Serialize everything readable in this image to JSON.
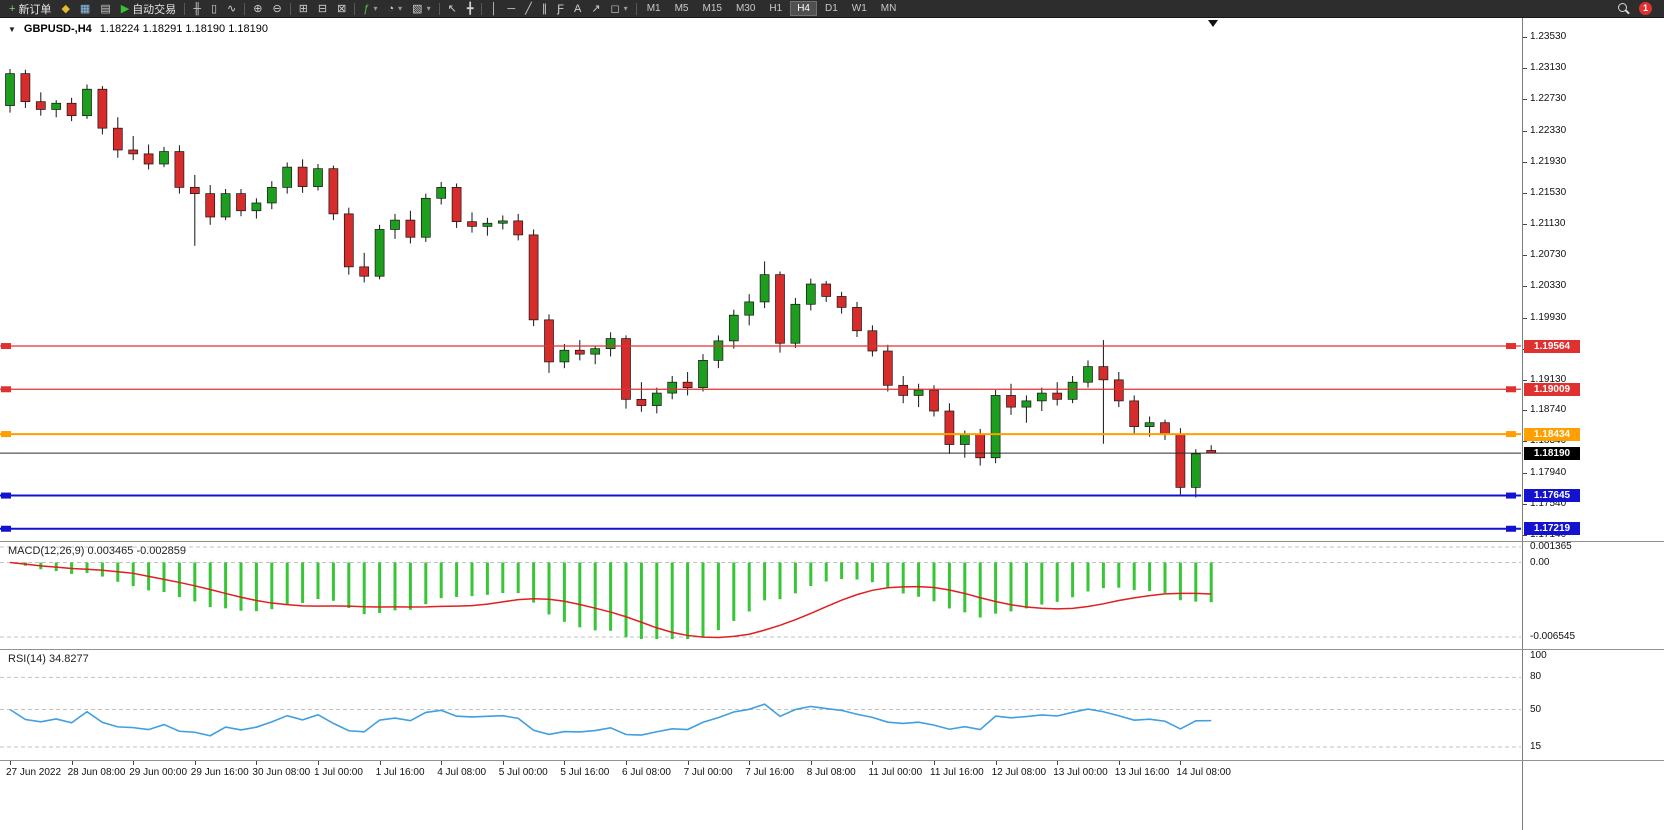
{
  "toolbar": {
    "groups": [
      [
        {
          "name": "new-order",
          "glyph": "+",
          "glyph_color": "#7fd47f",
          "label": "新订单"
        },
        {
          "name": "promo",
          "glyph": "◆",
          "glyph_color": "#e6b92e"
        },
        {
          "name": "chart-window",
          "glyph": "▦",
          "glyph_color": "#8fc1e8"
        },
        {
          "name": "profiles",
          "glyph": "▤",
          "glyph_color": "#c8c8c8"
        },
        {
          "name": "autotrade",
          "glyph": "▶",
          "glyph_color": "#35c435",
          "label": "自动交易"
        }
      ],
      [
        {
          "name": "bar-chart",
          "glyph": "╫"
        },
        {
          "name": "candlestick-chart",
          "glyph": "▯"
        },
        {
          "name": "line-chart",
          "glyph": "∿"
        }
      ],
      [
        {
          "name": "zoom-in",
          "glyph": "⊕"
        },
        {
          "name": "zoom-out",
          "glyph": "⊖"
        }
      ],
      [
        {
          "name": "tile-windows",
          "glyph": "⊞"
        },
        {
          "name": "cascade-windows",
          "glyph": "⊟"
        },
        {
          "name": "arrange-windows",
          "glyph": "⊠"
        }
      ],
      [
        {
          "name": "indicators",
          "glyph": "ƒ",
          "glyph_color": "#4fc14f",
          "caret": true
        },
        {
          "name": "periods",
          "glyph": "◔",
          "caret": true
        },
        {
          "name": "templates",
          "glyph": "▧",
          "caret": true
        }
      ],
      [
        {
          "name": "cursor",
          "glyph": "↖"
        },
        {
          "name": "crosshair",
          "glyph": "╋"
        }
      ],
      [
        {
          "name": "vertical-line",
          "glyph": "│"
        },
        {
          "name": "horizontal-line",
          "glyph": "─"
        },
        {
          "name": "trendline",
          "glyph": "╱"
        },
        {
          "name": "channel",
          "glyph": "∥"
        },
        {
          "name": "fibonacci",
          "glyph": "Ƒ"
        },
        {
          "name": "text-label",
          "glyph": "A"
        },
        {
          "name": "arrow-tool",
          "glyph": "↗"
        },
        {
          "name": "shapes",
          "glyph": "◻",
          "caret": true
        }
      ]
    ],
    "timeframes": [
      "M1",
      "M5",
      "M15",
      "M30",
      "H1",
      "H4",
      "D1",
      "W1",
      "MN"
    ],
    "active_timeframe": "H4",
    "notification_count": "1"
  },
  "chart": {
    "header": "GBPUSD-,H4",
    "ohlc_display": "1.18224 1.18291 1.18190 1.18190",
    "price_ticks": [
      "1.23530",
      "1.23130",
      "1.22730",
      "1.22330",
      "1.21930",
      "1.21530",
      "1.21130",
      "1.20730",
      "1.20330",
      "1.19930",
      "1.19530",
      "1.19130",
      "1.18740",
      "1.18340",
      "1.17940",
      "1.17540",
      "1.17140"
    ],
    "hlines": [
      {
        "price": 1.19564,
        "label": "1.19564",
        "color": "#e03131",
        "width": 1.2,
        "markers": true
      },
      {
        "price": 1.19009,
        "label": "1.19009",
        "color": "#e03131",
        "width": 1.2,
        "markers": true
      },
      {
        "price": 1.18434,
        "label": "1.18434",
        "color": "#ff9f00",
        "width": 2,
        "markers": true
      },
      {
        "price": 1.1819,
        "label": "1.18190",
        "color": "#2b2b2b",
        "width": 1,
        "tag_bg": "#000000",
        "markers": false
      },
      {
        "price": 1.17645,
        "label": "1.17645",
        "color": "#1212d0",
        "width": 2,
        "markers": true
      },
      {
        "price": 1.17219,
        "label": "1.17219",
        "color": "#1212d0",
        "width": 2,
        "markers": true
      }
    ],
    "up_color": "#1e9e1e",
    "down_color": "#d62c2c",
    "wick_color": "#141414"
  },
  "macd": {
    "label": "MACD(12,26,9)",
    "value_main": "0.003465",
    "value_signal": "-0.002859",
    "axis_labels": [
      "0.001365",
      "0.00",
      "-0.006545"
    ],
    "axis_values": [
      0.001365,
      0,
      -0.006545
    ],
    "histogram_color": "#36c636",
    "signal_color": "#e01f1f"
  },
  "rsi": {
    "label": "RSI(14)",
    "value": "34.8277",
    "axis_labels": [
      "100",
      "80",
      "50",
      "15"
    ],
    "axis_values": [
      100,
      80,
      50,
      15
    ],
    "levels": [
      80,
      50,
      15
    ],
    "line_color": "#3f9fdf"
  },
  "time_axis": {
    "labels": [
      "27 Jun 2022",
      "28 Jun 08:00",
      "29 Jun 00:00",
      "29 Jun 16:00",
      "30 Jun 08:00",
      "1 Jul 00:00",
      "1 Jul 16:00",
      "4 Jul 08:00",
      "5 Jul 00:00",
      "5 Jul 16:00",
      "6 Jul 08:00",
      "7 Jul 00:00",
      "7 Jul 16:00",
      "8 Jul 08:00",
      "11 Jul 00:00",
      "11 Jul 16:00",
      "12 Jul 08:00",
      "13 Jul 00:00",
      "13 Jul 16:00",
      "14 Jul 08:00"
    ],
    "bar_indices": [
      0,
      4,
      8,
      12,
      16,
      20,
      24,
      28,
      32,
      36,
      40,
      44,
      48,
      52,
      56,
      60,
      64,
      68,
      72,
      76
    ]
  },
  "chart_data": {
    "type": "candlestick",
    "symbol": "GBPUSD-",
    "timeframe": "H4",
    "ohlc": [
      [
        1.2265,
        1.2312,
        1.2256,
        1.2306
      ],
      [
        1.2306,
        1.2311,
        1.2262,
        1.227
      ],
      [
        1.227,
        1.2282,
        1.2252,
        1.226
      ],
      [
        1.226,
        1.2272,
        1.225,
        1.2268
      ],
      [
        1.2268,
        1.2275,
        1.2245,
        1.2252
      ],
      [
        1.2252,
        1.2292,
        1.2248,
        1.2286
      ],
      [
        1.2286,
        1.229,
        1.2228,
        1.2236
      ],
      [
        1.2236,
        1.225,
        1.2198,
        1.2208
      ],
      [
        1.2208,
        1.2226,
        1.2195,
        1.2203
      ],
      [
        1.2203,
        1.2215,
        1.2183,
        1.219
      ],
      [
        1.219,
        1.2212,
        1.2186,
        1.2206
      ],
      [
        1.2206,
        1.2214,
        1.2152,
        1.216
      ],
      [
        1.216,
        1.2176,
        1.2085,
        1.2152
      ],
      [
        1.2152,
        1.2163,
        1.2112,
        1.2122
      ],
      [
        1.2122,
        1.2158,
        1.2118,
        1.2152
      ],
      [
        1.2152,
        1.2158,
        1.2123,
        1.213
      ],
      [
        1.213,
        1.2146,
        1.212,
        1.214
      ],
      [
        1.214,
        1.2168,
        1.2132,
        1.216
      ],
      [
        1.216,
        1.2192,
        1.2152,
        1.2186
      ],
      [
        1.2186,
        1.2196,
        1.2153,
        1.2161
      ],
      [
        1.2161,
        1.219,
        1.2156,
        1.2184
      ],
      [
        1.2184,
        1.2188,
        1.2118,
        1.2126
      ],
      [
        1.2126,
        1.2134,
        1.2048,
        1.2058
      ],
      [
        1.2058,
        1.2076,
        1.2038,
        1.2046
      ],
      [
        1.2046,
        1.2112,
        1.2042,
        1.2106
      ],
      [
        1.2106,
        1.2126,
        1.2094,
        1.2118
      ],
      [
        1.2118,
        1.213,
        1.2088,
        1.2096
      ],
      [
        1.2096,
        1.2152,
        1.209,
        1.2146
      ],
      [
        1.2146,
        1.2167,
        1.2138,
        1.216
      ],
      [
        1.216,
        1.2165,
        1.2108,
        1.2116
      ],
      [
        1.2116,
        1.2128,
        1.2102,
        1.211
      ],
      [
        1.211,
        1.2121,
        1.2098,
        1.2114
      ],
      [
        1.2114,
        1.2124,
        1.2106,
        1.2117
      ],
      [
        1.2117,
        1.2126,
        1.2092,
        1.2099
      ],
      [
        1.2099,
        1.2106,
        1.1982,
        1.199
      ],
      [
        1.199,
        1.1997,
        1.1922,
        1.1936
      ],
      [
        1.1936,
        1.1959,
        1.1928,
        1.1951
      ],
      [
        1.1951,
        1.1964,
        1.1938,
        1.1946
      ],
      [
        1.1946,
        1.1957,
        1.1933,
        1.1953
      ],
      [
        1.1953,
        1.1974,
        1.1943,
        1.1966
      ],
      [
        1.1966,
        1.197,
        1.1876,
        1.1888
      ],
      [
        1.1888,
        1.191,
        1.1872,
        1.188
      ],
      [
        1.188,
        1.1903,
        1.187,
        1.1896
      ],
      [
        1.1896,
        1.1918,
        1.1888,
        1.191
      ],
      [
        1.191,
        1.1923,
        1.1893,
        1.1903
      ],
      [
        1.1903,
        1.1946,
        1.1898,
        1.1938
      ],
      [
        1.1938,
        1.197,
        1.1928,
        1.1963
      ],
      [
        1.1963,
        1.2003,
        1.1953,
        1.1996
      ],
      [
        1.1996,
        1.2023,
        1.1983,
        1.2013
      ],
      [
        1.2013,
        1.2065,
        1.2005,
        1.2048
      ],
      [
        1.2048,
        1.2052,
        1.1948,
        1.196
      ],
      [
        1.196,
        1.2018,
        1.1954,
        1.201
      ],
      [
        1.201,
        1.2043,
        1.2002,
        1.2036
      ],
      [
        1.2036,
        1.204,
        1.2013,
        1.202
      ],
      [
        1.202,
        1.2026,
        1.1998,
        1.2006
      ],
      [
        1.2006,
        1.2013,
        1.1968,
        1.1976
      ],
      [
        1.1976,
        1.1983,
        1.1943,
        1.195
      ],
      [
        1.195,
        1.1958,
        1.1898,
        1.1906
      ],
      [
        1.1906,
        1.1918,
        1.1883,
        1.1893
      ],
      [
        1.1893,
        1.1908,
        1.1878,
        1.19
      ],
      [
        1.19,
        1.1906,
        1.1866,
        1.1873
      ],
      [
        1.1873,
        1.1883,
        1.1818,
        1.183
      ],
      [
        1.183,
        1.1848,
        1.1813,
        1.1843
      ],
      [
        1.1843,
        1.185,
        1.1803,
        1.1813
      ],
      [
        1.1813,
        1.19,
        1.1806,
        1.1893
      ],
      [
        1.1893,
        1.1908,
        1.1868,
        1.1878
      ],
      [
        1.1878,
        1.1893,
        1.1858,
        1.1886
      ],
      [
        1.1886,
        1.1903,
        1.1873,
        1.1896
      ],
      [
        1.1896,
        1.191,
        1.188,
        1.1888
      ],
      [
        1.1888,
        1.1918,
        1.1883,
        1.191
      ],
      [
        1.191,
        1.1938,
        1.1903,
        1.193
      ],
      [
        1.193,
        1.1964,
        1.1831,
        1.1913
      ],
      [
        1.1913,
        1.1923,
        1.1878,
        1.1886
      ],
      [
        1.1886,
        1.1893,
        1.1843,
        1.1853
      ],
      [
        1.1853,
        1.1866,
        1.184,
        1.1858
      ],
      [
        1.1858,
        1.1862,
        1.1836,
        1.1843
      ],
      [
        1.1843,
        1.1851,
        1.1766,
        1.1775
      ],
      [
        1.1775,
        1.1824,
        1.1762,
        1.1818
      ],
      [
        1.18224,
        1.18291,
        1.1819,
        1.1819
      ]
    ]
  }
}
